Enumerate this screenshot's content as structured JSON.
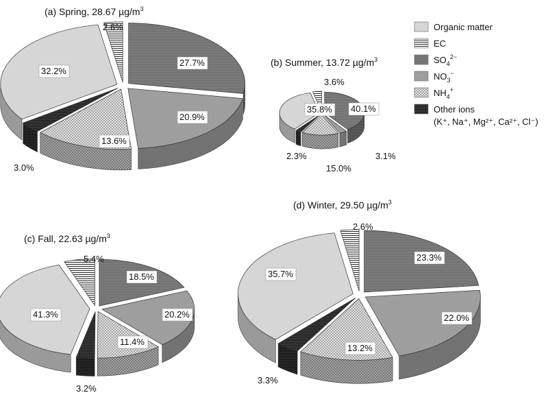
{
  "legend": {
    "items": [
      {
        "key": "om",
        "label": "Organic matter",
        "pattern": "pat-om"
      },
      {
        "key": "ec",
        "label": "EC",
        "pattern": "pat-ec"
      },
      {
        "key": "so4",
        "label": "SO4",
        "sub": "2−",
        "subpos": "super-sub",
        "pattern": "pat-so4"
      },
      {
        "key": "no3",
        "label": "NO3",
        "sub": "−",
        "subpos": "super-sub",
        "pattern": "pat-no3"
      },
      {
        "key": "nh4",
        "label": "NH4",
        "sub": "+",
        "subpos": "super-sub",
        "pattern": "pat-nh4"
      },
      {
        "key": "other",
        "label": "Other ions",
        "pattern": "pat-other"
      }
    ],
    "other_ions_detail": "(K⁺, Na⁺, Mg²⁺, Ca²⁺, Cl⁻)"
  },
  "chart_data": [
    {
      "type": "pie",
      "title": "(a) Spring, 28.67 µg/m",
      "title_sup": "3",
      "slices": [
        {
          "key": "ec",
          "label": "2.6%",
          "value": 2.6
        },
        {
          "key": "so4",
          "label": "27.7%",
          "value": 27.7
        },
        {
          "key": "no3",
          "label": "20.9%",
          "value": 20.9
        },
        {
          "key": "nh4",
          "label": "13.6%",
          "value": 13.6
        },
        {
          "key": "other",
          "label": "3.0%",
          "value": 3.0
        },
        {
          "key": "om",
          "label": "32.2%",
          "value": 32.2
        }
      ]
    },
    {
      "type": "pie",
      "title": "(b) Summer, 13.72 µg/m",
      "title_sup": "3",
      "slices": [
        {
          "key": "ec",
          "label": "3.6%",
          "value": 3.6
        },
        {
          "key": "so4",
          "label": "40.1%",
          "value": 40.1
        },
        {
          "key": "no3",
          "label": "3.1%",
          "value": 3.1
        },
        {
          "key": "nh4",
          "label": "15.0%",
          "value": 15.0
        },
        {
          "key": "other",
          "label": "2.3%",
          "value": 2.3
        },
        {
          "key": "om",
          "label": "35.8%",
          "value": 35.8
        }
      ]
    },
    {
      "type": "pie",
      "title": "(c) Fall, 22.63 µg/m",
      "title_sup": "3",
      "slices": [
        {
          "key": "ec",
          "label": "5.4%",
          "value": 5.4
        },
        {
          "key": "so4",
          "label": "18.5%",
          "value": 18.5
        },
        {
          "key": "no3",
          "label": "20.2%",
          "value": 20.2
        },
        {
          "key": "nh4",
          "label": "11.4%",
          "value": 11.4
        },
        {
          "key": "other",
          "label": "3.2%",
          "value": 3.2
        },
        {
          "key": "om",
          "label": "41.3%",
          "value": 41.3
        }
      ]
    },
    {
      "type": "pie",
      "title": "(d) Winter, 29.50 µg/m",
      "title_sup": "3",
      "slices": [
        {
          "key": "ec",
          "label": "2.6%",
          "value": 2.6
        },
        {
          "key": "so4",
          "label": "23.3%",
          "value": 23.3
        },
        {
          "key": "no3",
          "label": "22.0%",
          "value": 22.0
        },
        {
          "key": "nh4",
          "label": "13.2%",
          "value": 13.2
        },
        {
          "key": "other",
          "label": "3.3%",
          "value": 3.3
        },
        {
          "key": "om",
          "label": "35.7%",
          "value": 35.7
        }
      ]
    }
  ]
}
